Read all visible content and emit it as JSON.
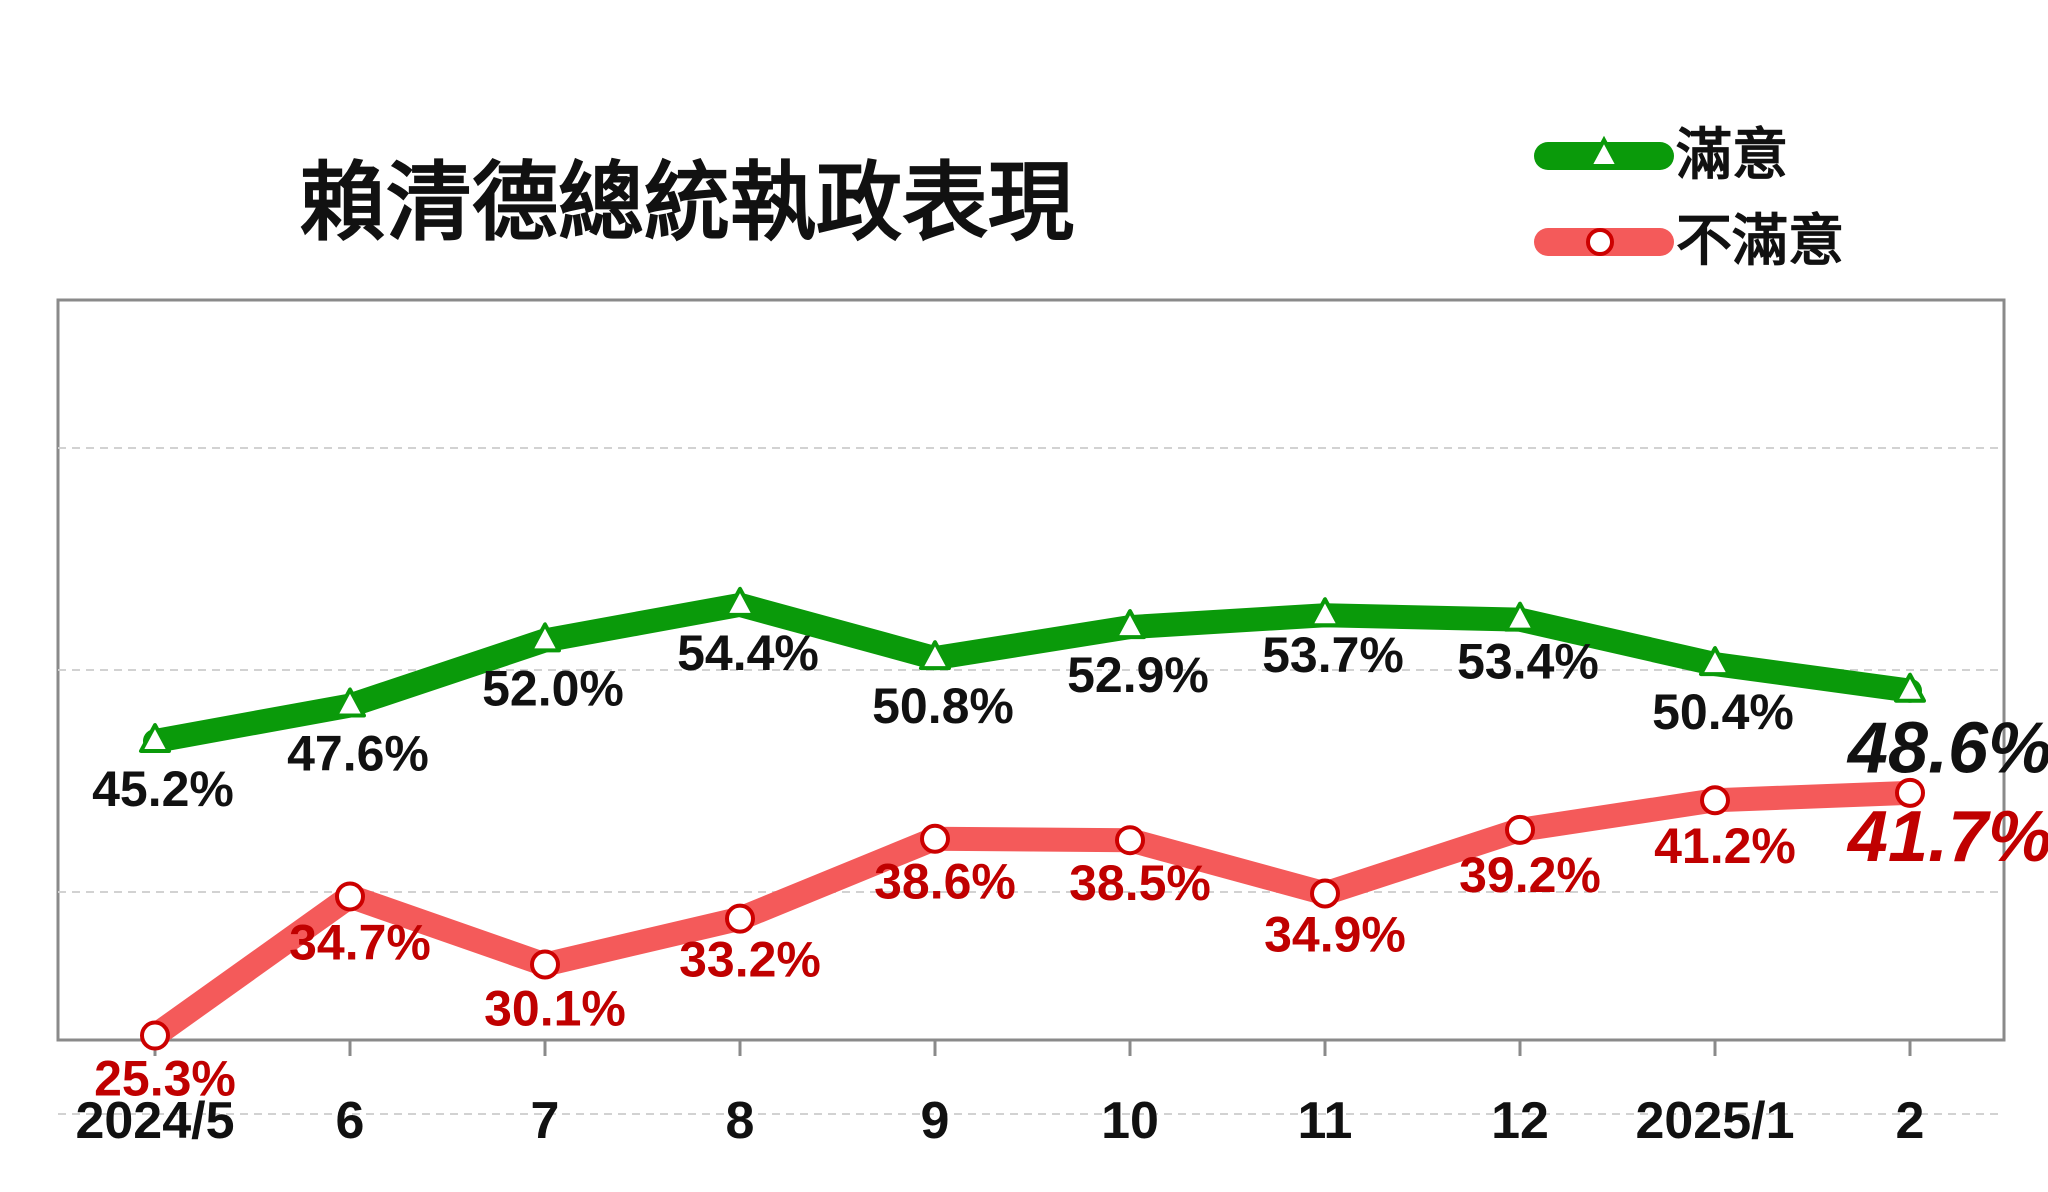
{
  "chart_data": {
    "type": "line",
    "title": "賴清德總統執政表現",
    "categories": [
      "2024/5",
      "6",
      "7",
      "8",
      "9",
      "10",
      "11",
      "12",
      "2025/1",
      "2"
    ],
    "ylim": [
      10,
      70
    ],
    "grid": "horizontal dashed",
    "legend_position": "top-right",
    "series": [
      {
        "name": "滿意",
        "color": "#0a9a0a",
        "marker": "triangle",
        "values": [
          45.2,
          47.6,
          52.0,
          54.4,
          50.8,
          52.9,
          53.7,
          53.4,
          50.4,
          48.6
        ],
        "labels": [
          "45.2%",
          "47.6%",
          "52.0%",
          "54.4%",
          "50.8%",
          "52.9%",
          "53.7%",
          "53.4%",
          "50.4%",
          "48.6%"
        ]
      },
      {
        "name": "不滿意",
        "color": "#f45a5a",
        "marker": "circle",
        "values": [
          25.3,
          34.7,
          30.1,
          33.2,
          38.6,
          38.5,
          34.9,
          39.2,
          41.2,
          41.7
        ],
        "labels": [
          "25.3%",
          "34.7%",
          "30.1%",
          "33.2%",
          "38.6%",
          "38.5%",
          "34.9%",
          "39.2%",
          "41.2%",
          "41.7%"
        ]
      }
    ]
  }
}
